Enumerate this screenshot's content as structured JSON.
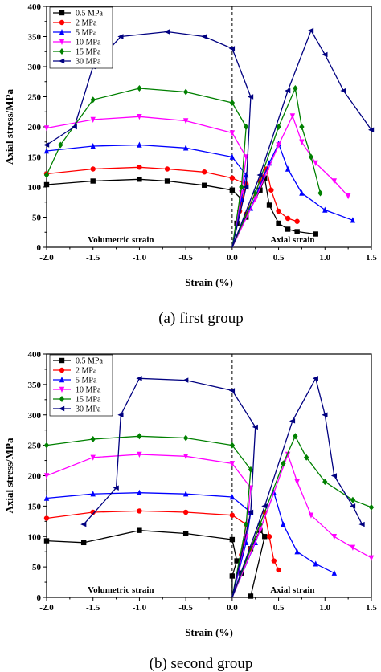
{
  "legend_labels": [
    "0.5 MPa",
    "2 MPa",
    "5 MPa",
    "10 MPa",
    "15 MPa",
    "30 MPa"
  ],
  "series_colors": [
    "#000000",
    "#ff0000",
    "#0000ff",
    "#ff00ff",
    "#008000",
    "#000080"
  ],
  "series_markers": [
    "square",
    "circle",
    "triangle-up",
    "triangle-down",
    "diamond",
    "triangle-left"
  ],
  "chart_data": [
    {
      "type": "line",
      "caption": "(a) first group",
      "xlabel": "Strain (%)",
      "ylabel": "Axial stress/MPa",
      "xlim": [
        -2.0,
        1.5
      ],
      "ylim": [
        0,
        400
      ],
      "x_ticks": [
        "-2.0",
        "-1.5",
        "-1.0",
        "-0.5",
        "0.0",
        "0.5",
        "1.0",
        "1.5"
      ],
      "y_ticks": [
        "0",
        "50",
        "100",
        "150",
        "200",
        "250",
        "300",
        "350",
        "400"
      ],
      "annotations": [
        "Volumetric strain",
        "Axial strain"
      ],
      "zero_line": true,
      "grid": false,
      "legend_position": "top-left",
      "series": [
        {
          "name": "0.5 MPa",
          "volumetric": [
            [
              0.0,
              0
            ],
            [
              0.05,
              40
            ],
            [
              0.1,
              80
            ],
            [
              0.0,
              95
            ],
            [
              -0.3,
              103
            ],
            [
              -0.7,
              110
            ],
            [
              -1.0,
              113
            ],
            [
              -1.5,
              110
            ],
            [
              -2.0,
              104
            ]
          ],
          "axial": [
            [
              0.0,
              0
            ],
            [
              0.15,
              50
            ],
            [
              0.3,
              95
            ],
            [
              0.35,
              115
            ],
            [
              0.4,
              70
            ],
            [
              0.5,
              40
            ],
            [
              0.6,
              30
            ],
            [
              0.7,
              26
            ],
            [
              0.9,
              22
            ]
          ]
        },
        {
          "name": "2 MPa",
          "volumetric": [
            [
              0.0,
              0
            ],
            [
              0.08,
              60
            ],
            [
              0.15,
              105
            ],
            [
              0.0,
              115
            ],
            [
              -0.3,
              125
            ],
            [
              -0.7,
              130
            ],
            [
              -1.0,
              133
            ],
            [
              -1.5,
              130
            ],
            [
              -2.0,
              122
            ]
          ],
          "axial": [
            [
              0.0,
              0
            ],
            [
              0.15,
              55
            ],
            [
              0.3,
              110
            ],
            [
              0.37,
              130
            ],
            [
              0.42,
              95
            ],
            [
              0.5,
              60
            ],
            [
              0.6,
              48
            ],
            [
              0.7,
              43
            ]
          ]
        },
        {
          "name": "5 MPa",
          "volumetric": [
            [
              0.0,
              0
            ],
            [
              0.1,
              80
            ],
            [
              0.15,
              120
            ],
            [
              0.0,
              150
            ],
            [
              -0.5,
              165
            ],
            [
              -1.0,
              170
            ],
            [
              -1.5,
              168
            ],
            [
              -2.0,
              160
            ]
          ],
          "axial": [
            [
              0.0,
              0
            ],
            [
              0.2,
              65
            ],
            [
              0.4,
              140
            ],
            [
              0.5,
              172
            ],
            [
              0.6,
              130
            ],
            [
              0.75,
              90
            ],
            [
              1.0,
              62
            ],
            [
              1.3,
              45
            ]
          ]
        },
        {
          "name": "10 MPa",
          "volumetric": [
            [
              0.0,
              0
            ],
            [
              0.1,
              90
            ],
            [
              0.15,
              150
            ],
            [
              0.0,
              190
            ],
            [
              -0.5,
              210
            ],
            [
              -1.0,
              217
            ],
            [
              -1.5,
              212
            ],
            [
              -2.0,
              198
            ]
          ],
          "axial": [
            [
              0.0,
              0
            ],
            [
              0.25,
              80
            ],
            [
              0.5,
              170
            ],
            [
              0.65,
              218
            ],
            [
              0.75,
              175
            ],
            [
              0.9,
              140
            ],
            [
              1.1,
              110
            ],
            [
              1.25,
              85
            ]
          ]
        },
        {
          "name": "15 MPa",
          "volumetric": [
            [
              0.0,
              0
            ],
            [
              0.1,
              100
            ],
            [
              0.15,
              200
            ],
            [
              0.0,
              240
            ],
            [
              -0.5,
              258
            ],
            [
              -1.0,
              264
            ],
            [
              -1.5,
              245
            ],
            [
              -1.85,
              170
            ],
            [
              -2.0,
              120
            ]
          ],
          "axial": [
            [
              0.0,
              0
            ],
            [
              0.25,
              90
            ],
            [
              0.5,
              200
            ],
            [
              0.68,
              264
            ],
            [
              0.75,
              200
            ],
            [
              0.85,
              150
            ],
            [
              0.95,
              90
            ]
          ]
        },
        {
          "name": "30 MPa",
          "volumetric": [
            [
              0.0,
              0
            ],
            [
              0.15,
              100
            ],
            [
              0.2,
              250
            ],
            [
              0.0,
              330
            ],
            [
              -0.3,
              350
            ],
            [
              -0.7,
              358
            ],
            [
              -1.2,
              350
            ],
            [
              -1.5,
              300
            ],
            [
              -1.7,
              200
            ],
            [
              -2.0,
              170
            ]
          ],
          "axial": [
            [
              0.0,
              0
            ],
            [
              0.3,
              120
            ],
            [
              0.6,
              260
            ],
            [
              0.85,
              360
            ],
            [
              1.0,
              320
            ],
            [
              1.2,
              260
            ],
            [
              1.5,
              195
            ]
          ]
        }
      ]
    },
    {
      "type": "line",
      "caption": "(b) second group",
      "xlabel": "Strain (%)",
      "ylabel": "Axial stress/MPa",
      "xlim": [
        -2.0,
        1.5
      ],
      "ylim": [
        0,
        400
      ],
      "x_ticks": [
        "-2.0",
        "-1.5",
        "-1.0",
        "-0.5",
        "0.0",
        "0.5",
        "1.0",
        "1.5"
      ],
      "y_ticks": [
        "0",
        "50",
        "100",
        "150",
        "200",
        "250",
        "300",
        "350",
        "400"
      ],
      "annotations": [
        "Volumetric strain",
        "Axial strain"
      ],
      "zero_line": true,
      "grid": false,
      "legend_position": "top-left",
      "series": [
        {
          "name": "0.5 MPa",
          "volumetric": [
            [
              0.0,
              0
            ],
            [
              0.0,
              35
            ],
            [
              0.05,
              60
            ],
            [
              0.0,
              95
            ],
            [
              -0.5,
              105
            ],
            [
              -1.0,
              110
            ],
            [
              -1.6,
              90
            ],
            [
              -2.0,
              93
            ]
          ],
          "axial": [
            [
              0.0,
              0
            ],
            [
              0.1,
              40
            ],
            [
              0.2,
              80
            ],
            [
              0.3,
              110
            ],
            [
              0.35,
              100
            ],
            [
              0.2,
              2
            ]
          ]
        },
        {
          "name": "2 MPa",
          "volumetric": [
            [
              0.0,
              0
            ],
            [
              0.1,
              70
            ],
            [
              0.15,
              120
            ],
            [
              0.0,
              135
            ],
            [
              -0.5,
              140
            ],
            [
              -1.0,
              142
            ],
            [
              -1.5,
              140
            ],
            [
              -2.0,
              130
            ]
          ],
          "axial": [
            [
              0.0,
              0
            ],
            [
              0.2,
              80
            ],
            [
              0.35,
              140
            ],
            [
              0.4,
              100
            ],
            [
              0.45,
              60
            ],
            [
              0.5,
              45
            ]
          ]
        },
        {
          "name": "5 MPa",
          "volumetric": [
            [
              0.0,
              0
            ],
            [
              0.15,
              90
            ],
            [
              0.2,
              140
            ],
            [
              0.0,
              165
            ],
            [
              -0.5,
              170
            ],
            [
              -1.0,
              172
            ],
            [
              -1.5,
              170
            ],
            [
              -2.0,
              163
            ]
          ],
          "axial": [
            [
              0.0,
              0
            ],
            [
              0.25,
              90
            ],
            [
              0.45,
              172
            ],
            [
              0.55,
              120
            ],
            [
              0.7,
              75
            ],
            [
              0.9,
              55
            ],
            [
              1.1,
              40
            ]
          ]
        },
        {
          "name": "10 MPa",
          "volumetric": [
            [
              0.0,
              0
            ],
            [
              0.15,
              100
            ],
            [
              0.2,
              180
            ],
            [
              0.0,
              220
            ],
            [
              -0.5,
              232
            ],
            [
              -1.0,
              235
            ],
            [
              -1.5,
              230
            ],
            [
              -2.0,
              200
            ]
          ],
          "axial": [
            [
              0.0,
              0
            ],
            [
              0.3,
              110
            ],
            [
              0.6,
              235
            ],
            [
              0.7,
              190
            ],
            [
              0.85,
              135
            ],
            [
              1.1,
              100
            ],
            [
              1.3,
              82
            ],
            [
              1.5,
              65
            ]
          ]
        },
        {
          "name": "15 MPa",
          "volumetric": [
            [
              0.0,
              0
            ],
            [
              0.15,
              120
            ],
            [
              0.2,
              210
            ],
            [
              0.0,
              250
            ],
            [
              -0.5,
              262
            ],
            [
              -1.0,
              265
            ],
            [
              -1.5,
              260
            ],
            [
              -2.0,
              250
            ]
          ],
          "axial": [
            [
              0.0,
              0
            ],
            [
              0.3,
              120
            ],
            [
              0.55,
              220
            ],
            [
              0.68,
              265
            ],
            [
              0.8,
              230
            ],
            [
              1.0,
              190
            ],
            [
              1.3,
              160
            ],
            [
              1.5,
              148
            ]
          ]
        },
        {
          "name": "30 MPa",
          "volumetric": [
            [
              0.0,
              0
            ],
            [
              0.2,
              140
            ],
            [
              0.25,
              280
            ],
            [
              0.0,
              340
            ],
            [
              -0.5,
              357
            ],
            [
              -1.0,
              360
            ],
            [
              -1.2,
              300
            ],
            [
              -1.25,
              180
            ],
            [
              -1.6,
              120
            ]
          ],
          "axial": [
            [
              0.0,
              0
            ],
            [
              0.35,
              150
            ],
            [
              0.65,
              290
            ],
            [
              0.9,
              360
            ],
            [
              1.0,
              300
            ],
            [
              1.1,
              200
            ],
            [
              1.3,
              150
            ],
            [
              1.4,
              120
            ]
          ]
        }
      ]
    }
  ]
}
